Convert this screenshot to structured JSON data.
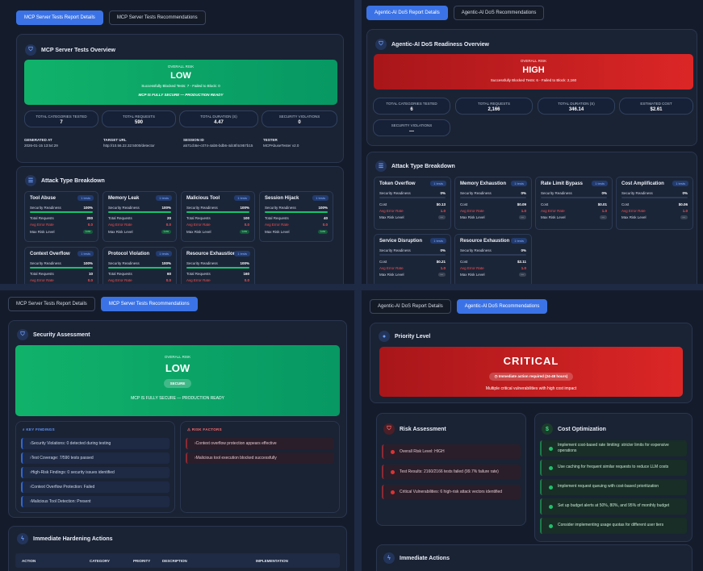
{
  "p1": {
    "tabs": [
      "MCP Server Tests Report Details",
      "MCP Server Tests Recommendations"
    ],
    "overview_title": "MCP Server Tests Overview",
    "banner": {
      "label": "OVERALL RISK",
      "level": "LOW",
      "sub": "Successfully Blocked Tests: 7 - Failed to Block: 0",
      "status": "MCP IS FULLY SECURE — PRODUCTION READY"
    },
    "stats": [
      {
        "label": "TOTAL CATEGORIES TESTED",
        "value": "7"
      },
      {
        "label": "TOTAL REQUESTS",
        "value": "590"
      },
      {
        "label": "TOTAL DURATION (S)",
        "value": "4.47"
      },
      {
        "label": "SECURITY VIOLATIONS",
        "value": "0"
      }
    ],
    "meta": [
      {
        "label": "GENERATED AT",
        "value": "2026-01-15 13:54:29"
      },
      {
        "label": "TARGET URL",
        "value": "http://10.56.22.32:5000/detector"
      },
      {
        "label": "SESSION ID",
        "value": "a571cb5e-c074-4ab5-bdb6-4dc8f4c957b15"
      },
      {
        "label": "TESTER",
        "value": "MCPAbuseTester v2.0"
      }
    ],
    "breakdown_title": "Attack Type Breakdown",
    "row_labels": {
      "readiness": "Security Readiness",
      "requests": "Total Requests",
      "error": "Avg Error Rate",
      "risk": "Max Risk Level",
      "cost": "Cost"
    },
    "attacks": [
      {
        "name": "Tool Abuse",
        "badge": "1 tests",
        "readiness": "100%",
        "readiness_pct": 100,
        "requests": "200",
        "error": "0.0",
        "risk": "Low"
      },
      {
        "name": "Memory Leak",
        "badge": "1 tests",
        "readiness": "100%",
        "readiness_pct": 100,
        "requests": "20",
        "error": "0.0",
        "risk": "Low"
      },
      {
        "name": "Malicious Tool",
        "badge": "1 tests",
        "readiness": "100%",
        "readiness_pct": 100,
        "requests": "100",
        "error": "0.0",
        "risk": "Low"
      },
      {
        "name": "Session Hijack",
        "badge": "1 tests",
        "readiness": "100%",
        "readiness_pct": 100,
        "requests": "40",
        "error": "0.0",
        "risk": "Low"
      },
      {
        "name": "Context Overflow",
        "badge": "1 tests",
        "readiness": "100%",
        "readiness_pct": 100,
        "requests": "10",
        "error": "0.0",
        "risk": ""
      },
      {
        "name": "Protocol Violation",
        "badge": "1 tests",
        "readiness": "100%",
        "readiness_pct": 100,
        "requests": "60",
        "error": "0.0",
        "risk": ""
      },
      {
        "name": "Resource Exhaustion",
        "badge": "1 tests",
        "readiness": "100%",
        "readiness_pct": 100,
        "requests": "160",
        "error": "0.0",
        "risk": ""
      }
    ]
  },
  "p2": {
    "tabs": [
      "Agentic-AI DoS Report Details",
      "Agentic-AI DoS Recommendations"
    ],
    "overview_title": "Agentic-AI DoS Readiness Overview",
    "banner": {
      "label": "OVERALL RISK",
      "level": "HIGH",
      "sub": "Successfully Blocked Tests: 6 - Failed to Block: 2,160"
    },
    "stats": [
      {
        "label": "TOTAL CATEGORIES TESTED",
        "value": "6"
      },
      {
        "label": "TOTAL REQUESTS",
        "value": "2,166"
      },
      {
        "label": "TOTAL DURATION (S)",
        "value": "346.14"
      },
      {
        "label": "ESTIMATED COST",
        "value": "$2.61"
      },
      {
        "label": "SECURITY VIOLATIONS",
        "value": "—"
      }
    ],
    "breakdown_title": "Attack Type Breakdown",
    "attacks": [
      {
        "name": "Token Overflow",
        "badge": "1 tests",
        "readiness": "0%",
        "readiness_pct": 0,
        "cost": "$0.13",
        "error": "1.0"
      },
      {
        "name": "Memory Exhaustion",
        "badge": "1 tests",
        "readiness": "0%",
        "readiness_pct": 0,
        "cost": "$0.09",
        "error": "1.0"
      },
      {
        "name": "Rate Limit Bypass",
        "badge": "1 tests",
        "readiness": "0%",
        "readiness_pct": 0,
        "cost": "$0.01",
        "error": "1.0"
      },
      {
        "name": "Cost Amplification",
        "badge": "1 tests",
        "readiness": "0%",
        "readiness_pct": 0,
        "cost": "$0.06",
        "error": "1.0"
      },
      {
        "name": "Service Disruption",
        "badge": "1 tests",
        "readiness": "0%",
        "readiness_pct": 0,
        "cost": "$0.21",
        "error": "1.0"
      },
      {
        "name": "Resource Exhaustion",
        "badge": "1 tests",
        "readiness": "0%",
        "readiness_pct": 0,
        "cost": "$2.11",
        "error": "1.0"
      }
    ]
  },
  "p3": {
    "tabs": [
      "MCP Server Tests Report Details",
      "MCP Server Tests Recommendations"
    ],
    "assessment_title": "Security Assessment",
    "banner": {
      "label": "OVERALL RISK",
      "level": "LOW",
      "chip": "SECURE",
      "status": "MCP IS FULLY SECURE — PRODUCTION READY"
    },
    "key_findings_label": "KEY FINDINGS",
    "key_findings": [
      "Security Violations: 0 detected during testing",
      "Test Coverage: 7/590 tests passed",
      "High-Risk Findings: 0 security issues identified",
      "Context Overflow Protection: Failed",
      "Malicious Tool Detection: Present"
    ],
    "risk_factors_label": "RISK FACTORS",
    "risk_factors": [
      "Context overflow protection appears effective",
      "Malicious tool execution blocked successfully"
    ],
    "hardening_title": "Immediate Hardening Actions",
    "table_headers": [
      "ACTION",
      "CATEGORY",
      "PRIORITY",
      "DESCRIPTION",
      "IMPLEMENTATION"
    ]
  },
  "p4": {
    "tabs": [
      "Agentic-AI DoS Report Details",
      "Agentic-AI DoS Recommendations"
    ],
    "priority_title": "Priority Level",
    "banner": {
      "level": "CRITICAL",
      "chip": "Immediate action required (24-48 hours)",
      "sub": "Multiple critical vulnerabilities with high cost impact"
    },
    "risk_title": "Risk Assessment",
    "risks": [
      "Overall Risk Level: HIGH",
      "Test Results: 2160/2166 tests failed (99.7% failure rate)",
      "Critical Vulnerabilities: 6 high-risk attack vectors identified"
    ],
    "cost_title": "Cost Optimization",
    "costs": [
      "Implement cost-based rate limiting: stricter limits for expensive operations",
      "Use caching for frequent similar requests to reduce LLM costs",
      "Implement request queuing with cost-based prioritization",
      "Set up budget alerts at 50%, 80%, and 95% of monthly budget",
      "Consider implementing usage quotas for different user tiers"
    ],
    "actions_title": "Immediate Actions"
  },
  "colors": {
    "low": "#10b26a",
    "high": "#dc2626",
    "accent": "#3b73e6",
    "panel_bg": "#141c2b",
    "divider": "#1e2a44"
  },
  "icons": [
    "shield-icon",
    "list-icon",
    "search-icon",
    "warning-icon",
    "bolt-icon",
    "dollar-icon",
    "alert-dot-icon"
  ]
}
